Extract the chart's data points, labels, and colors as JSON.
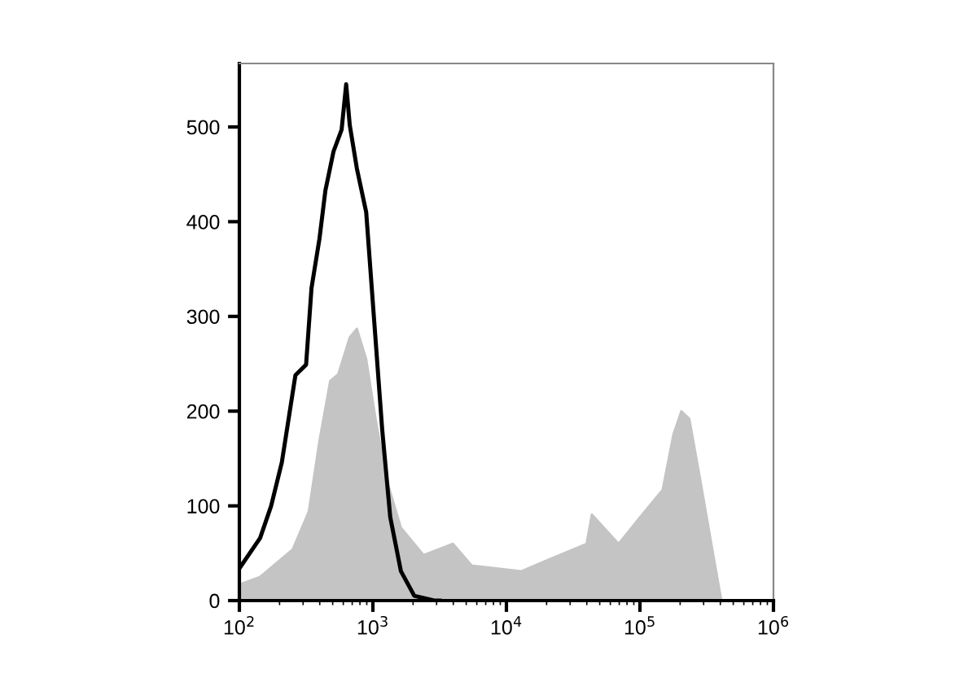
{
  "chart_data": {
    "type": "area",
    "log": "x",
    "xlim": [
      100,
      1000000
    ],
    "ylim": [
      0,
      567
    ],
    "xticks": [
      {
        "value": 100,
        "label": "10$^{2}$"
      },
      {
        "value": 1000,
        "label": "10$^{3}$"
      },
      {
        "value": 10000,
        "label": "10$^{4}$"
      },
      {
        "value": 100000,
        "label": "10$^{5}$"
      },
      {
        "value": 1000000,
        "label": "10$^{6}$"
      }
    ],
    "yticks": [
      0,
      100,
      200,
      300,
      400,
      500
    ],
    "grid": false,
    "series": [
      {
        "color": "#c4c4c4",
        "x": [
          100,
          143,
          251,
          331,
          398,
          479,
          550,
          671,
          759,
          891,
          1047,
          1259,
          1622,
          2399,
          3981,
          5495,
          12882,
          20417,
          39811,
          43652,
          69183,
          100000,
          147911,
          177828,
          204174,
          234423,
          281838,
          354813,
          407380
        ],
        "values": [
          17,
          25,
          54,
          94,
          169,
          232,
          239,
          278,
          287,
          255,
          192,
          129,
          77,
          48,
          60,
          37,
          31,
          43,
          60,
          91,
          60,
          88,
          117,
          175,
          200,
          192,
          129,
          48,
          0
        ]
      },
      {
        "type": "line",
        "color": "#000000",
        "x": [
          100,
          143,
          173,
          208,
          263,
          316,
          347,
          398,
          441,
          507,
          583,
          631,
          671,
          759,
          891,
          1023,
          1175,
          1349,
          1622,
          2042,
          2884,
          3162
        ],
        "values": [
          34,
          66,
          100,
          146,
          238,
          249,
          330,
          382,
          433,
          474,
          497,
          545,
          502,
          456,
          410,
          295,
          180,
          88,
          31,
          5,
          0,
          0
        ]
      }
    ]
  }
}
